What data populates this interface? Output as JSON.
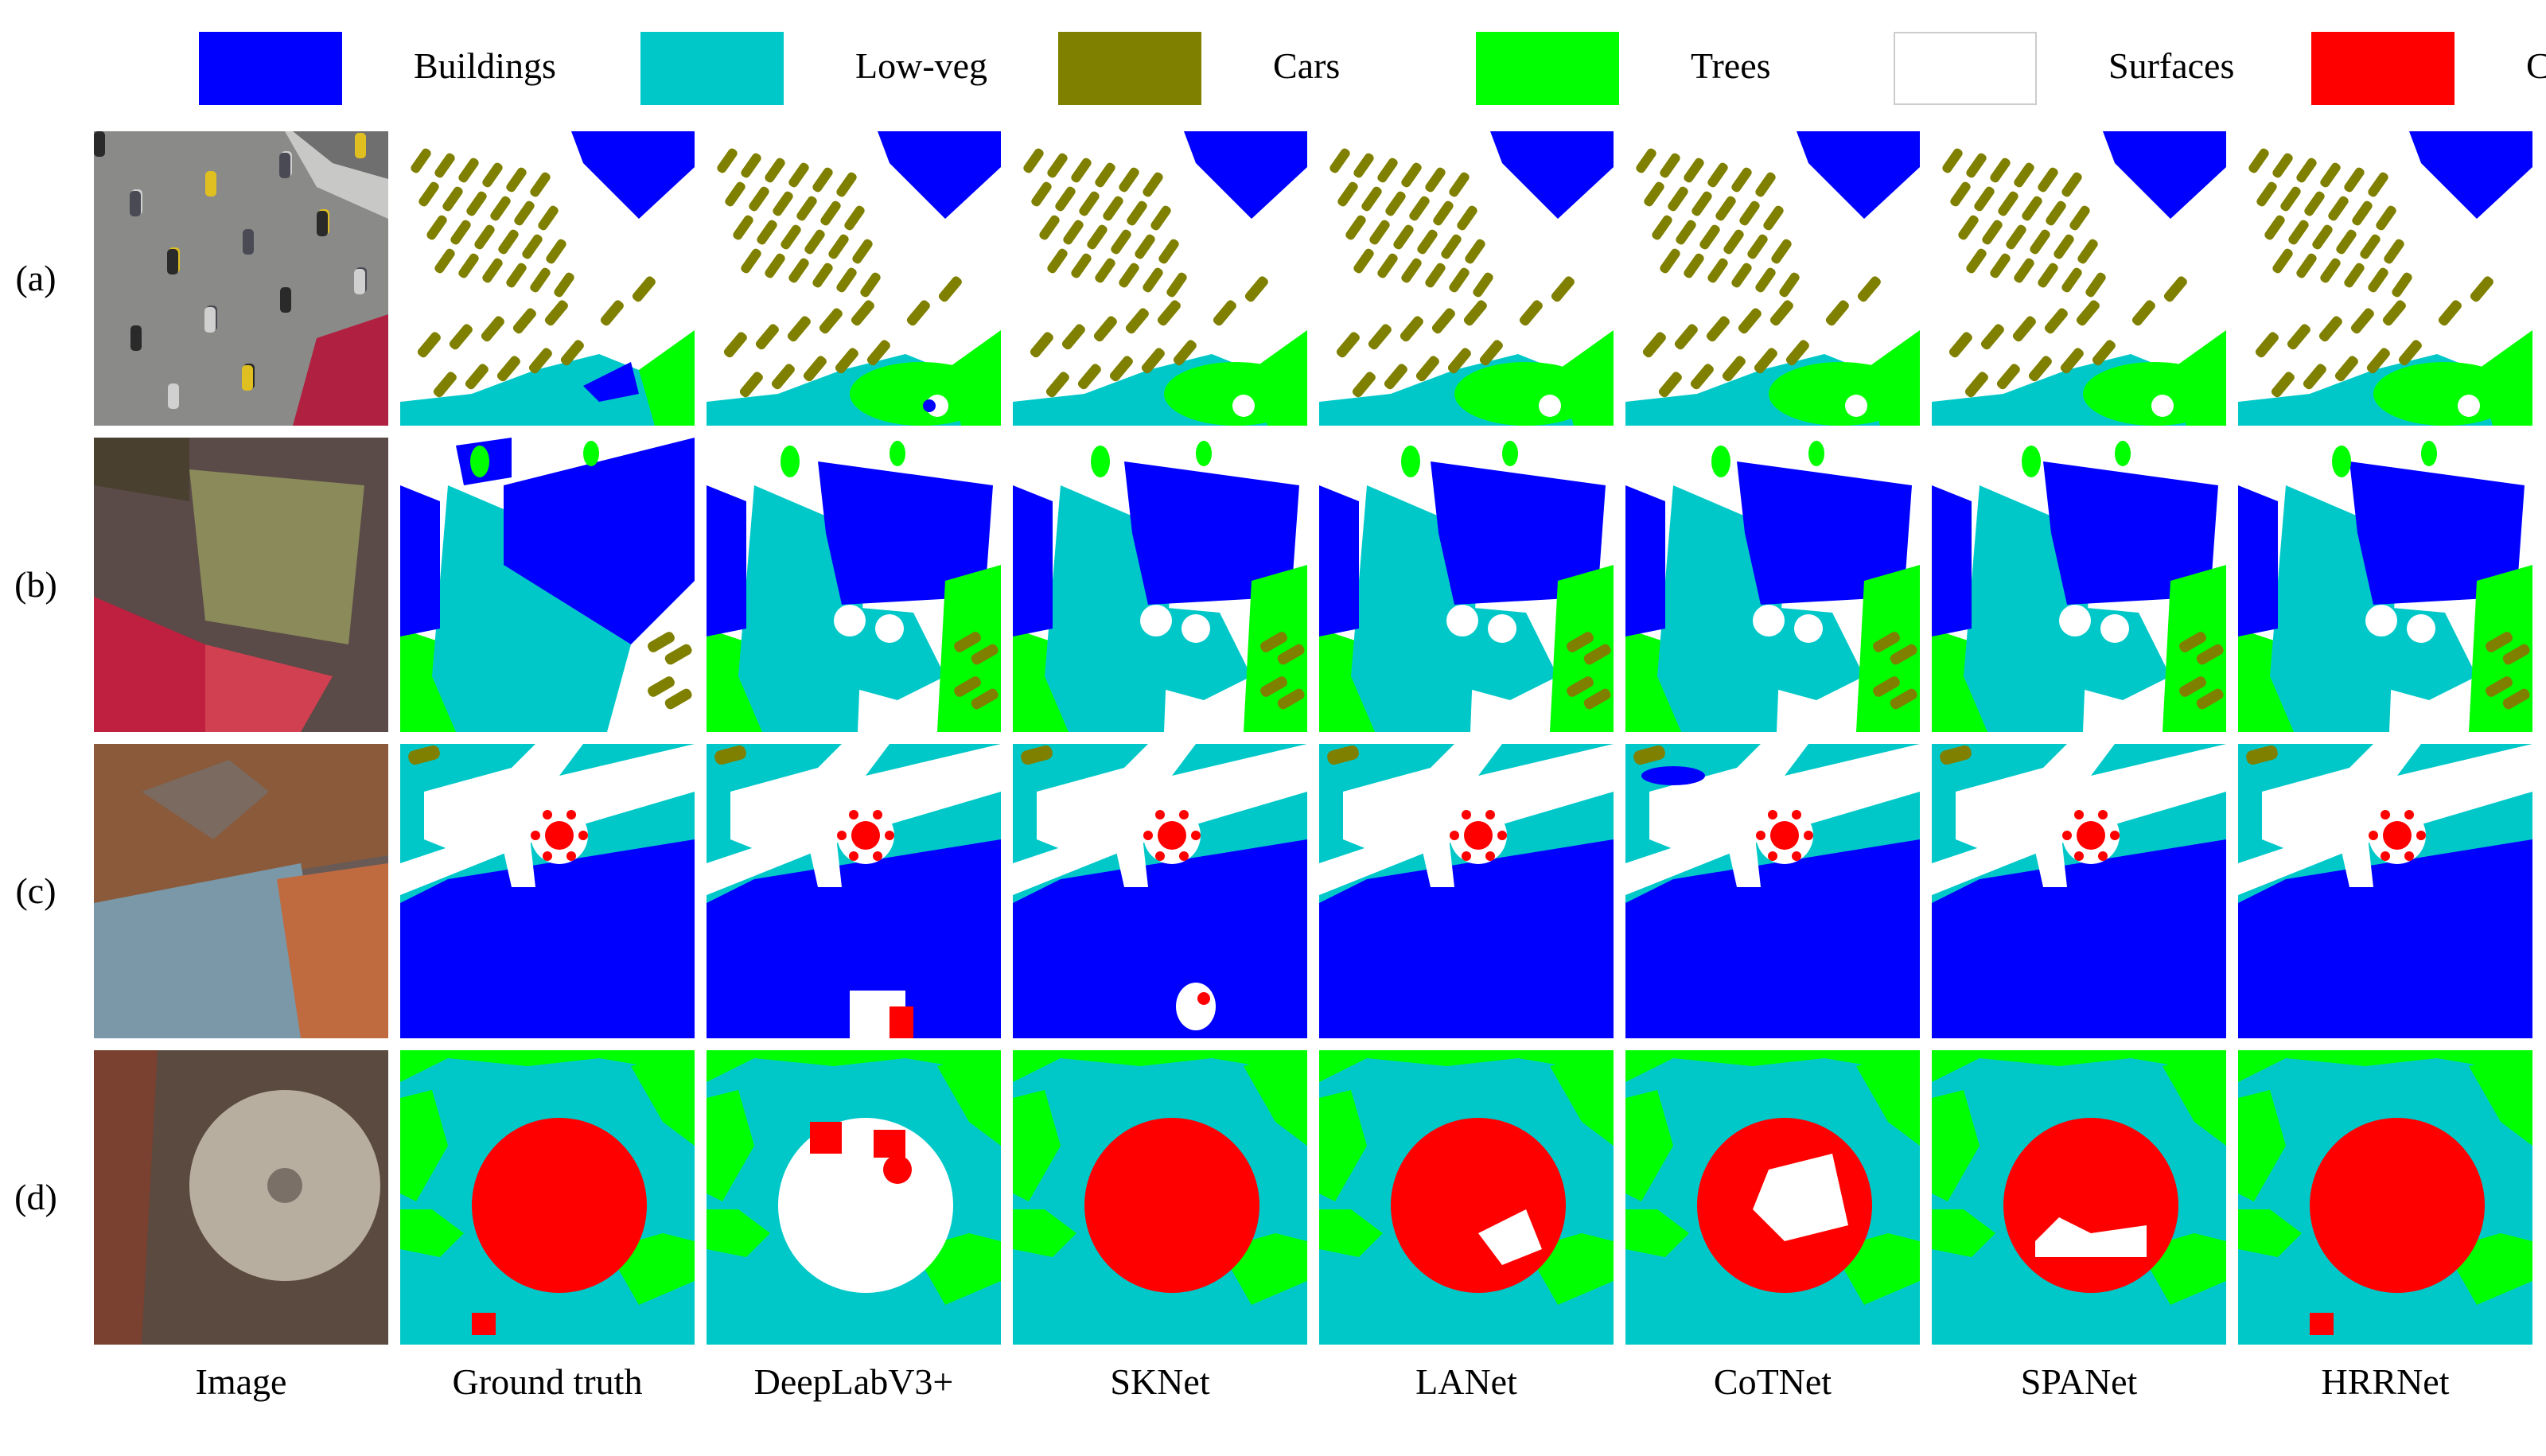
{
  "legend": [
    {
      "label": "Buildings",
      "color": "#0000ff"
    },
    {
      "label": "Low-veg",
      "color": "#00c8c8"
    },
    {
      "label": "Cars",
      "color": "#7f7f00"
    },
    {
      "label": "Trees",
      "color": "#00ff00"
    },
    {
      "label": "Surfaces",
      "color": "#ffffff"
    },
    {
      "label": "Clutters",
      "color": "#ff0000"
    }
  ],
  "rows": [
    "(a)",
    "(b)",
    "(c)",
    "(d)"
  ],
  "columns": [
    "Image",
    "Ground truth",
    "DeepLabV3+",
    "SKNet",
    "LANet",
    "CoTNet",
    "SPANet",
    "HRRNet"
  ],
  "colors": {
    "buildings": "#0000ff",
    "low_veg": "#00c8c8",
    "cars": "#7f7f00",
    "trees": "#00ff00",
    "surfaces": "#ffffff",
    "clutters": "#ff0000",
    "legend_border": "#cccccc"
  }
}
